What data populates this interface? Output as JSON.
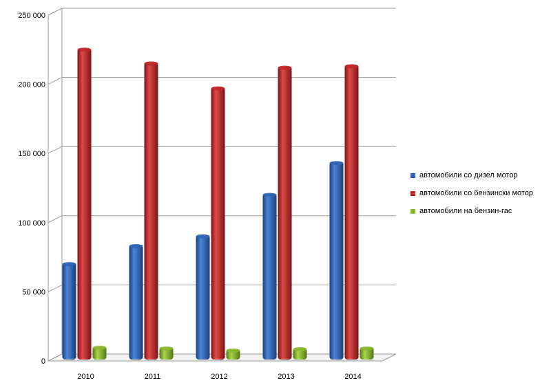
{
  "chart_data": {
    "type": "bar",
    "categories": [
      "2010",
      "2011",
      "2012",
      "2013",
      "2014"
    ],
    "series": [
      {
        "name": "автомобили со дизел мотор",
        "values": [
          71000,
          84000,
          91000,
          121000,
          144000
        ],
        "color": "#2f64b5"
      },
      {
        "name": "автомобили со бензински мотор",
        "values": [
          226000,
          216000,
          198000,
          213000,
          214000
        ],
        "color": "#c0282a"
      },
      {
        "name": "автомобили на бензин-гас",
        "values": [
          10500,
          10000,
          8500,
          9500,
          10000
        ],
        "color": "#8cba2e"
      }
    ],
    "ylim": [
      0,
      250000
    ],
    "yticks": [
      "0",
      "50 000",
      "100 000",
      "150 000",
      "200 000",
      "250 000"
    ],
    "grid": true,
    "legend_position": "right"
  }
}
